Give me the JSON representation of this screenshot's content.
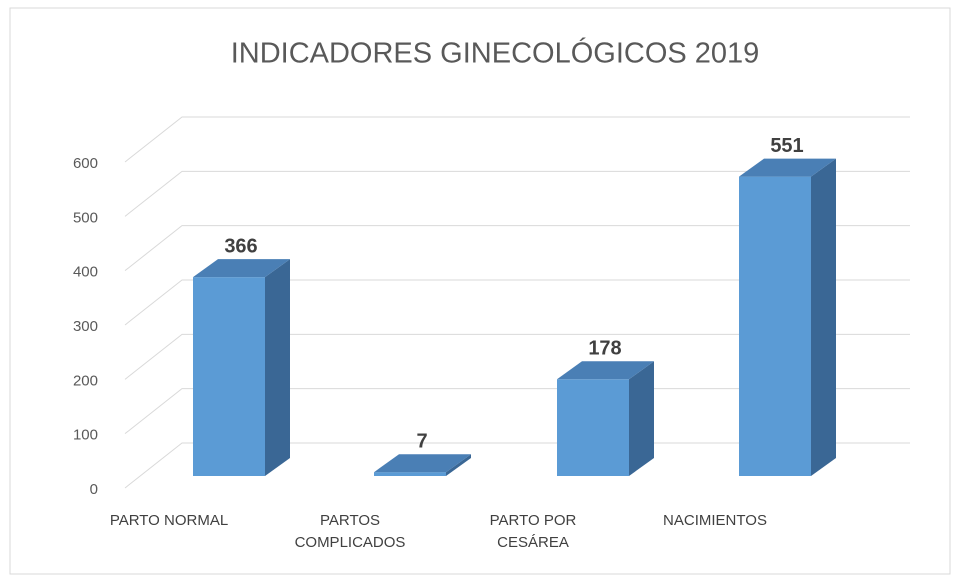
{
  "chart_data": {
    "type": "bar3d",
    "title": "INDICADORES GINECOLÓGICOS 2019",
    "categories": [
      "PARTO NORMAL",
      "PARTOS COMPLICADOS",
      "PARTO POR CESÁREA",
      "NACIMIENTOS"
    ],
    "values": [
      366,
      7,
      178,
      551
    ],
    "color": "#5b9bd5",
    "ylim": [
      0,
      600
    ],
    "yticks": [
      0,
      100,
      200,
      300,
      400,
      500,
      600
    ],
    "grid": true
  }
}
